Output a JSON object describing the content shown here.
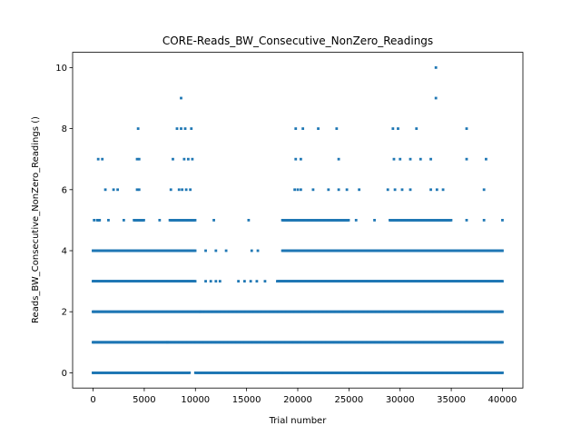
{
  "chart_data": {
    "type": "scatter",
    "title": "CORE-Reads_BW_Consecutive_NonZero_Readings",
    "xlabel": "Trial number",
    "ylabel": "Reads_BW_Consecutive_NonZero_Readings ()",
    "xlim": [
      -2000,
      42000
    ],
    "ylim": [
      -0.5,
      10.5
    ],
    "xticks": [
      0,
      5000,
      10000,
      15000,
      20000,
      25000,
      30000,
      35000,
      40000
    ],
    "yticks": [
      0,
      2,
      4,
      6,
      8,
      10
    ],
    "grid": false,
    "marker_color": "#1f77b4",
    "dense_ranges": [
      {
        "y": 0,
        "ranges": [
          [
            0,
            9500
          ],
          [
            10000,
            18500
          ],
          [
            18500,
            40000
          ]
        ]
      },
      {
        "y": 1,
        "ranges": [
          [
            0,
            7300
          ],
          [
            7300,
            40000
          ]
        ]
      },
      {
        "y": 2,
        "ranges": [
          [
            0,
            10500
          ],
          [
            10500,
            40000
          ]
        ]
      },
      {
        "y": 3,
        "ranges": [
          [
            0,
            10000
          ],
          [
            18000,
            40000
          ]
        ]
      },
      {
        "y": 4,
        "ranges": [
          [
            0,
            10000
          ],
          [
            18500,
            40000
          ]
        ]
      },
      {
        "y": 5,
        "ranges": [
          [
            400,
            700
          ],
          [
            4000,
            5000
          ],
          [
            7500,
            10000
          ],
          [
            18500,
            25000
          ],
          [
            29000,
            35000
          ]
        ]
      }
    ],
    "points": [
      {
        "x": 0,
        "y": 0
      },
      {
        "x": 40000,
        "y": 0
      },
      {
        "x": 0,
        "y": 1
      },
      {
        "x": 40000,
        "y": 1
      },
      {
        "x": 0,
        "y": 2
      },
      {
        "x": 40000,
        "y": 2
      },
      {
        "x": 0,
        "y": 3
      },
      {
        "x": 11000,
        "y": 3
      },
      {
        "x": 11500,
        "y": 3
      },
      {
        "x": 12000,
        "y": 3
      },
      {
        "x": 12400,
        "y": 3
      },
      {
        "x": 14200,
        "y": 3
      },
      {
        "x": 14800,
        "y": 3
      },
      {
        "x": 15400,
        "y": 3
      },
      {
        "x": 16000,
        "y": 3
      },
      {
        "x": 16800,
        "y": 3
      },
      {
        "x": 40000,
        "y": 3
      },
      {
        "x": 0,
        "y": 4
      },
      {
        "x": 11000,
        "y": 4
      },
      {
        "x": 12000,
        "y": 4
      },
      {
        "x": 13000,
        "y": 4
      },
      {
        "x": 15500,
        "y": 4
      },
      {
        "x": 16100,
        "y": 4
      },
      {
        "x": 40000,
        "y": 4
      },
      {
        "x": 100,
        "y": 5
      },
      {
        "x": 1500,
        "y": 5
      },
      {
        "x": 3000,
        "y": 5
      },
      {
        "x": 6500,
        "y": 5
      },
      {
        "x": 11800,
        "y": 5
      },
      {
        "x": 15200,
        "y": 5
      },
      {
        "x": 25700,
        "y": 5
      },
      {
        "x": 27500,
        "y": 5
      },
      {
        "x": 36500,
        "y": 5
      },
      {
        "x": 38200,
        "y": 5
      },
      {
        "x": 40000,
        "y": 5
      },
      {
        "x": 1200,
        "y": 6
      },
      {
        "x": 2000,
        "y": 6
      },
      {
        "x": 2400,
        "y": 6
      },
      {
        "x": 4300,
        "y": 6
      },
      {
        "x": 4500,
        "y": 6
      },
      {
        "x": 7600,
        "y": 6
      },
      {
        "x": 8400,
        "y": 6
      },
      {
        "x": 8700,
        "y": 6
      },
      {
        "x": 9100,
        "y": 6
      },
      {
        "x": 9500,
        "y": 6
      },
      {
        "x": 19700,
        "y": 6
      },
      {
        "x": 20000,
        "y": 6
      },
      {
        "x": 20300,
        "y": 6
      },
      {
        "x": 21500,
        "y": 6
      },
      {
        "x": 23000,
        "y": 6
      },
      {
        "x": 24000,
        "y": 6
      },
      {
        "x": 24800,
        "y": 6
      },
      {
        "x": 26000,
        "y": 6
      },
      {
        "x": 28800,
        "y": 6
      },
      {
        "x": 29500,
        "y": 6
      },
      {
        "x": 30200,
        "y": 6
      },
      {
        "x": 31000,
        "y": 6
      },
      {
        "x": 33000,
        "y": 6
      },
      {
        "x": 33600,
        "y": 6
      },
      {
        "x": 34200,
        "y": 6
      },
      {
        "x": 38200,
        "y": 6
      },
      {
        "x": 500,
        "y": 7
      },
      {
        "x": 900,
        "y": 7
      },
      {
        "x": 4300,
        "y": 7
      },
      {
        "x": 4500,
        "y": 7
      },
      {
        "x": 7800,
        "y": 7
      },
      {
        "x": 8900,
        "y": 7
      },
      {
        "x": 9300,
        "y": 7
      },
      {
        "x": 9700,
        "y": 7
      },
      {
        "x": 19800,
        "y": 7
      },
      {
        "x": 20300,
        "y": 7
      },
      {
        "x": 24000,
        "y": 7
      },
      {
        "x": 29400,
        "y": 7
      },
      {
        "x": 30000,
        "y": 7
      },
      {
        "x": 31000,
        "y": 7
      },
      {
        "x": 32000,
        "y": 7
      },
      {
        "x": 33000,
        "y": 7
      },
      {
        "x": 36500,
        "y": 7
      },
      {
        "x": 38400,
        "y": 7
      },
      {
        "x": 4400,
        "y": 8
      },
      {
        "x": 8200,
        "y": 8
      },
      {
        "x": 8600,
        "y": 8
      },
      {
        "x": 9000,
        "y": 8
      },
      {
        "x": 9600,
        "y": 8
      },
      {
        "x": 19800,
        "y": 8
      },
      {
        "x": 20500,
        "y": 8
      },
      {
        "x": 22000,
        "y": 8
      },
      {
        "x": 23800,
        "y": 8
      },
      {
        "x": 29300,
        "y": 8
      },
      {
        "x": 29800,
        "y": 8
      },
      {
        "x": 31600,
        "y": 8
      },
      {
        "x": 36500,
        "y": 8
      },
      {
        "x": 8600,
        "y": 9
      },
      {
        "x": 33500,
        "y": 9
      },
      {
        "x": 33500,
        "y": 10
      }
    ]
  }
}
